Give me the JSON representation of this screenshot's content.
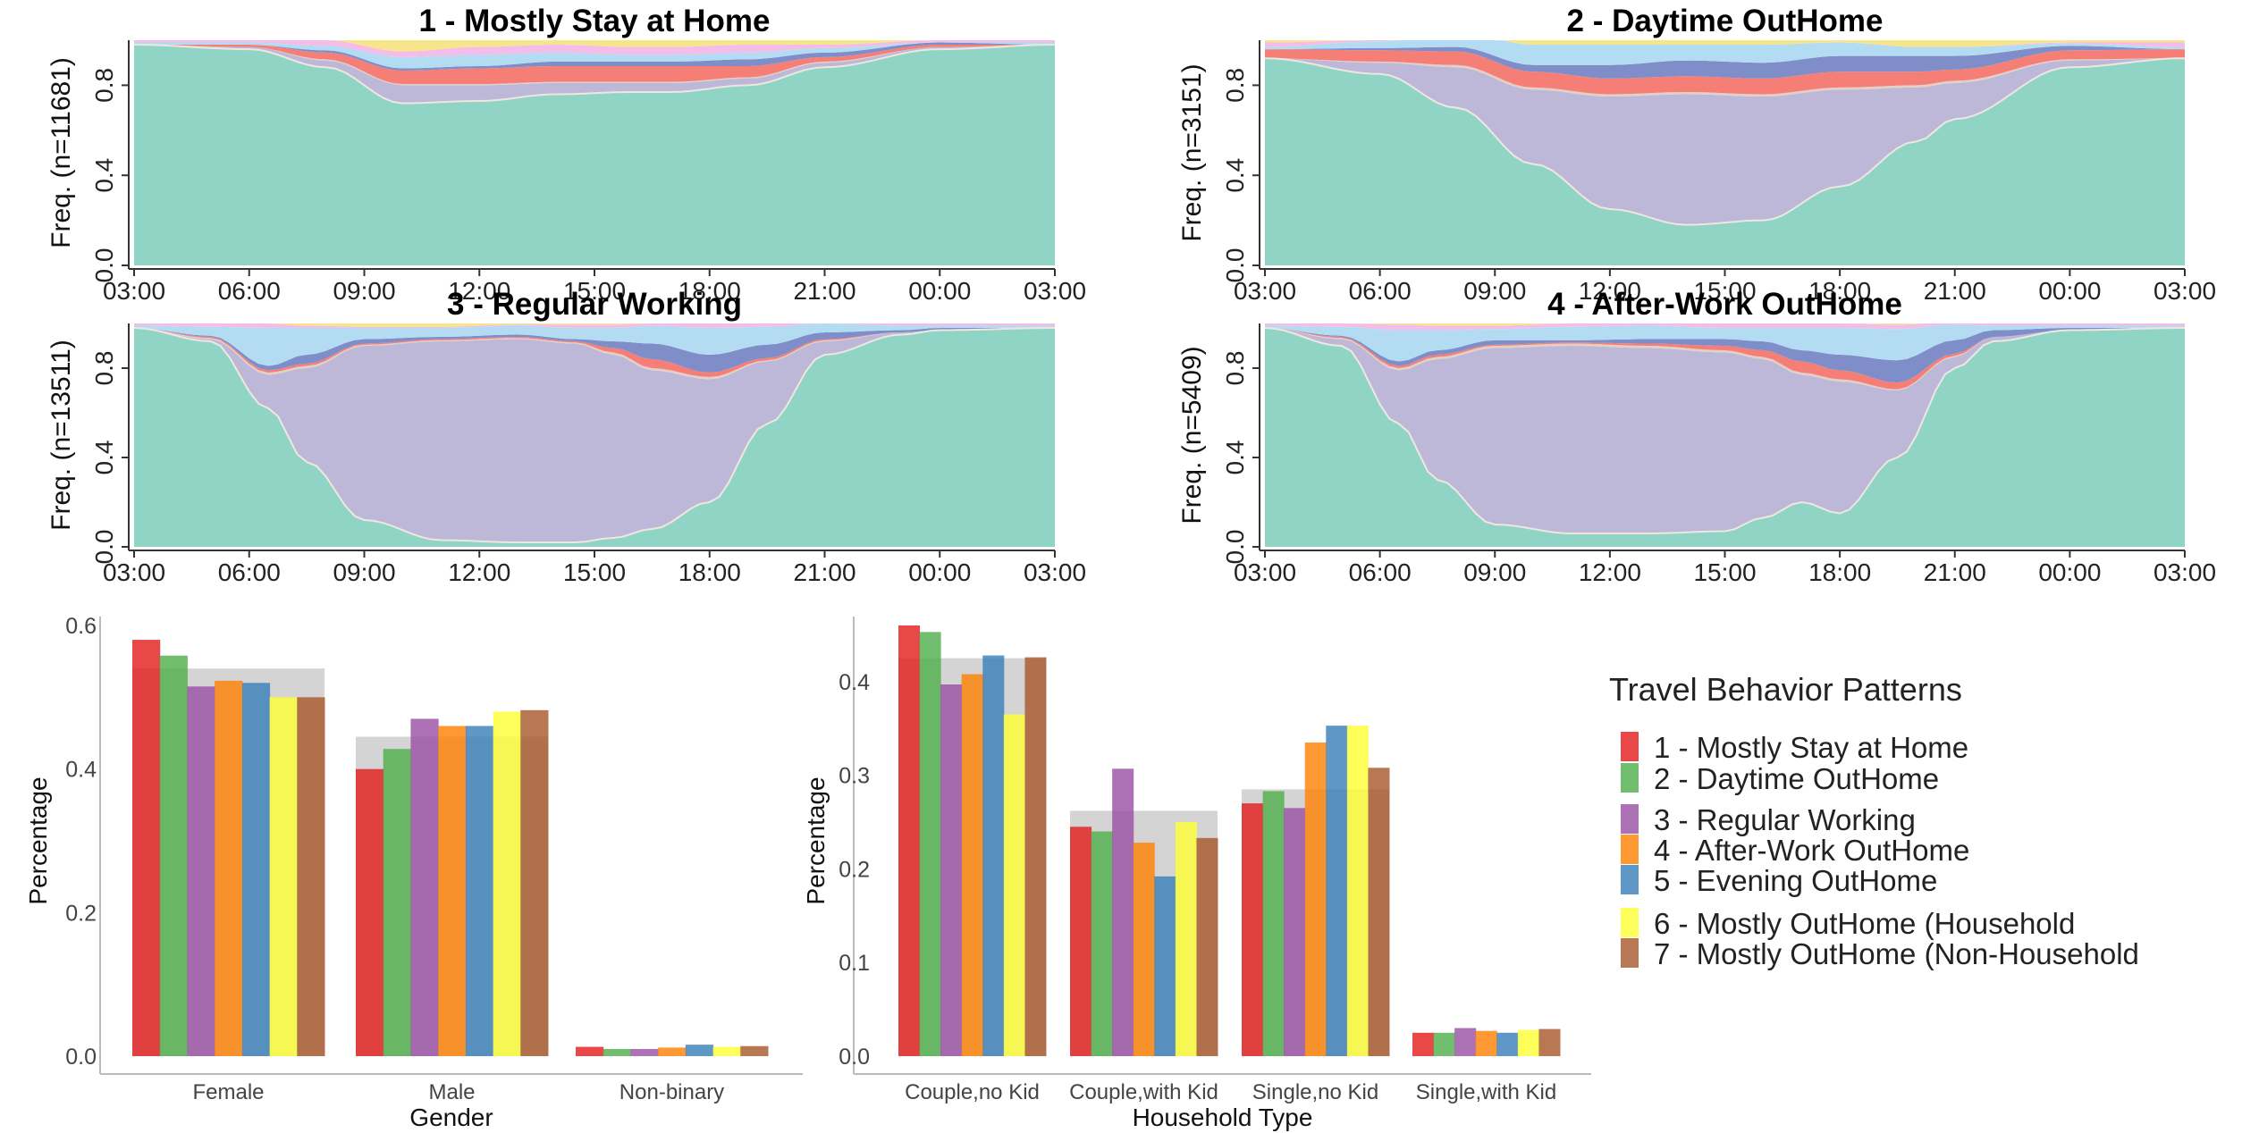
{
  "chart_data": [
    {
      "type": "area",
      "title": "1 - Mostly Stay at Home",
      "ylabel": "Freq. (n=11681)",
      "ylim": [
        0,
        1
      ],
      "yticks": [
        "0.0",
        "0.4",
        "0.8"
      ],
      "xticks": [
        "03:00",
        "06:00",
        "09:00",
        "12:00",
        "15:00",
        "18:00",
        "21:00",
        "00:00",
        "03:00"
      ],
      "hours": [
        0,
        3,
        5,
        7,
        9,
        11,
        13,
        14,
        16,
        18,
        21,
        24
      ],
      "series": [
        {
          "values": [
            0.98,
            0.96,
            0.88,
            0.72,
            0.73,
            0.76,
            0.77,
            0.77,
            0.8,
            0.88,
            0.96,
            0.98
          ]
        },
        {
          "values": [
            0.0,
            0.01,
            0.03,
            0.08,
            0.07,
            0.05,
            0.04,
            0.04,
            0.03,
            0.02,
            0.01,
            0.0
          ]
        },
        {
          "values": [
            0.0,
            0.0,
            0.005,
            0.005,
            0.005,
            0.005,
            0.005,
            0.005,
            0.005,
            0.005,
            0.0,
            0.0
          ]
        },
        {
          "values": [
            0.0,
            0.01,
            0.03,
            0.06,
            0.07,
            0.07,
            0.07,
            0.07,
            0.05,
            0.02,
            0.01,
            0.0
          ]
        },
        {
          "values": [
            0.0,
            0.0,
            0.01,
            0.01,
            0.01,
            0.02,
            0.02,
            0.02,
            0.03,
            0.02,
            0.01,
            0.0
          ]
        },
        {
          "values": [
            0.01,
            0.01,
            0.02,
            0.05,
            0.05,
            0.04,
            0.03,
            0.03,
            0.03,
            0.02,
            0.0,
            0.01
          ]
        },
        {
          "values": [
            0.01,
            0.02,
            0.025,
            0.025,
            0.035,
            0.035,
            0.035,
            0.035,
            0.035,
            0.015,
            0.01,
            0.01
          ]
        }
      ]
    },
    {
      "type": "area",
      "title": "2 - Daytime OutHome",
      "ylabel": "Freq. (n=3151)",
      "ylim": [
        0,
        1
      ],
      "yticks": [
        "0.0",
        "0.4",
        "0.8"
      ],
      "xticks": [
        "03:00",
        "06:00",
        "09:00",
        "12:00",
        "15:00",
        "18:00",
        "21:00",
        "00:00",
        "03:00"
      ],
      "hours": [
        0,
        3,
        5,
        7,
        9,
        11,
        13,
        15,
        17,
        18,
        21,
        24
      ],
      "series": [
        {
          "values": [
            0.92,
            0.85,
            0.7,
            0.45,
            0.25,
            0.18,
            0.2,
            0.35,
            0.55,
            0.65,
            0.88,
            0.92
          ]
        },
        {
          "values": [
            0.0,
            0.05,
            0.18,
            0.33,
            0.5,
            0.58,
            0.55,
            0.43,
            0.24,
            0.16,
            0.03,
            0.0
          ]
        },
        {
          "values": [
            0.0,
            0.005,
            0.01,
            0.01,
            0.01,
            0.01,
            0.01,
            0.01,
            0.01,
            0.01,
            0.005,
            0.0
          ]
        },
        {
          "values": [
            0.04,
            0.05,
            0.06,
            0.07,
            0.07,
            0.07,
            0.07,
            0.07,
            0.06,
            0.05,
            0.04,
            0.04
          ]
        },
        {
          "values": [
            0.0,
            0.01,
            0.02,
            0.03,
            0.06,
            0.07,
            0.07,
            0.07,
            0.07,
            0.06,
            0.02,
            0.0
          ]
        },
        {
          "values": [
            0.01,
            0.03,
            0.07,
            0.09,
            0.09,
            0.07,
            0.08,
            0.06,
            0.04,
            0.04,
            0.01,
            0.01
          ]
        },
        {
          "values": [
            0.02,
            0.005,
            0.0,
            0.0,
            0.0,
            0.0,
            0.0,
            0.0,
            0.0,
            0.0,
            0.005,
            0.02
          ]
        }
      ]
    },
    {
      "type": "area",
      "title": "3 - Regular Working",
      "ylabel": "Freq. (n=13511)",
      "ylim": [
        0,
        1
      ],
      "yticks": [
        "0.0",
        "0.4",
        "0.8"
      ],
      "xticks": [
        "03:00",
        "06:00",
        "09:00",
        "12:00",
        "15:00",
        "18:00",
        "21:00",
        "00:00",
        "03:00"
      ],
      "hours": [
        0,
        2,
        3.5,
        4.5,
        6,
        8,
        10,
        11.5,
        12.5,
        13.5,
        15,
        16.5,
        18,
        20,
        21,
        24
      ],
      "series": [
        {
          "values": [
            0.98,
            0.92,
            0.62,
            0.38,
            0.12,
            0.03,
            0.02,
            0.02,
            0.04,
            0.08,
            0.2,
            0.55,
            0.86,
            0.95,
            0.97,
            0.98
          ]
        },
        {
          "values": [
            0.0,
            0.01,
            0.15,
            0.42,
            0.78,
            0.89,
            0.91,
            0.89,
            0.82,
            0.71,
            0.55,
            0.28,
            0.06,
            0.01,
            0.0,
            0.0
          ]
        },
        {
          "values": [
            0.0,
            0.005,
            0.01,
            0.01,
            0.005,
            0.005,
            0.005,
            0.005,
            0.01,
            0.01,
            0.01,
            0.005,
            0.005,
            0.0,
            0.0,
            0.0
          ]
        },
        {
          "values": [
            0.0,
            0.005,
            0.01,
            0.01,
            0.005,
            0.005,
            0.005,
            0.005,
            0.02,
            0.04,
            0.02,
            0.01,
            0.005,
            0.0,
            0.0,
            0.0
          ]
        },
        {
          "values": [
            0.0,
            0.005,
            0.02,
            0.04,
            0.02,
            0.01,
            0.01,
            0.01,
            0.03,
            0.07,
            0.08,
            0.06,
            0.03,
            0.01,
            0.01,
            0.0
          ]
        },
        {
          "values": [
            0.01,
            0.04,
            0.17,
            0.12,
            0.05,
            0.04,
            0.04,
            0.05,
            0.06,
            0.08,
            0.12,
            0.08,
            0.04,
            0.02,
            0.01,
            0.01
          ]
        },
        {
          "values": [
            0.01,
            0.015,
            0.02,
            0.01,
            0.005,
            0.005,
            0.005,
            0.015,
            0.015,
            0.01,
            0.02,
            0.015,
            0.01,
            0.01,
            0.01,
            0.01
          ]
        }
      ]
    },
    {
      "type": "area",
      "title": "4 - After-Work OutHome",
      "ylabel": "Freq. (n=5409)",
      "ylim": [
        0,
        1
      ],
      "yticks": [
        "0.0",
        "0.4",
        "0.8"
      ],
      "xticks": [
        "03:00",
        "06:00",
        "09:00",
        "12:00",
        "15:00",
        "18:00",
        "21:00",
        "00:00",
        "03:00"
      ],
      "hours": [
        0,
        2,
        3.5,
        4.5,
        6,
        8,
        10,
        12,
        13,
        14,
        15,
        16.5,
        18,
        19,
        21,
        24
      ],
      "series": [
        {
          "values": [
            0.98,
            0.9,
            0.55,
            0.3,
            0.1,
            0.06,
            0.06,
            0.07,
            0.13,
            0.2,
            0.15,
            0.4,
            0.8,
            0.92,
            0.97,
            0.98
          ]
        },
        {
          "values": [
            0.0,
            0.03,
            0.24,
            0.54,
            0.79,
            0.84,
            0.83,
            0.8,
            0.71,
            0.57,
            0.59,
            0.3,
            0.05,
            0.02,
            0.0,
            0.0
          ]
        },
        {
          "values": [
            0.0,
            0.005,
            0.01,
            0.01,
            0.01,
            0.01,
            0.01,
            0.01,
            0.01,
            0.01,
            0.01,
            0.005,
            0.005,
            0.0,
            0.0,
            0.0
          ]
        },
        {
          "values": [
            0.0,
            0.005,
            0.01,
            0.01,
            0.005,
            0.005,
            0.01,
            0.02,
            0.03,
            0.05,
            0.04,
            0.03,
            0.01,
            0.0,
            0.0,
            0.0
          ]
        },
        {
          "values": [
            0.0,
            0.005,
            0.02,
            0.02,
            0.02,
            0.01,
            0.02,
            0.03,
            0.04,
            0.05,
            0.07,
            0.1,
            0.06,
            0.03,
            0.01,
            0.0
          ]
        },
        {
          "values": [
            0.01,
            0.04,
            0.14,
            0.09,
            0.05,
            0.06,
            0.06,
            0.05,
            0.06,
            0.1,
            0.12,
            0.14,
            0.07,
            0.02,
            0.01,
            0.01
          ]
        },
        {
          "values": [
            0.01,
            0.015,
            0.025,
            0.02,
            0.015,
            0.015,
            0.015,
            0.02,
            0.02,
            0.02,
            0.02,
            0.02,
            0.01,
            0.01,
            0.01,
            0.01
          ]
        }
      ]
    },
    {
      "type": "bar",
      "xlabel": "Gender",
      "ylabel": "Percentage",
      "ylim": [
        0,
        0.6
      ],
      "yticks": [
        "0.0",
        "0.2",
        "0.4",
        "0.6"
      ],
      "categories": [
        "Female",
        "Male",
        "Non-binary"
      ],
      "reference": [
        0.54,
        0.445,
        0.0
      ],
      "series": [
        {
          "name": "1 - Mostly Stay at Home",
          "values": [
            0.58,
            0.4,
            0.013
          ]
        },
        {
          "name": "2 - Daytime OutHome",
          "values": [
            0.558,
            0.428,
            0.01
          ]
        },
        {
          "name": "3 - Regular Working",
          "values": [
            0.515,
            0.47,
            0.01
          ]
        },
        {
          "name": "4 - After-Work OutHome",
          "values": [
            0.523,
            0.46,
            0.012
          ]
        },
        {
          "name": "5 - Evening OutHome",
          "values": [
            0.52,
            0.46,
            0.016
          ]
        },
        {
          "name": "6 - Mostly OutHome (Household",
          "values": [
            0.5,
            0.48,
            0.013
          ]
        },
        {
          "name": "7 - Mostly OutHome (Non-Household",
          "values": [
            0.5,
            0.482,
            0.014
          ]
        }
      ]
    },
    {
      "type": "bar",
      "xlabel": "Household Type",
      "ylabel": "Percentage",
      "ylim": [
        0,
        0.46
      ],
      "yticks": [
        "0.0",
        "0.1",
        "0.2",
        "0.3",
        "0.4"
      ],
      "categories": [
        "Couple,no Kid",
        "Couple,with Kid",
        "Single,no Kid",
        "Single,with Kid"
      ],
      "reference": [
        0.425,
        0.262,
        0.285,
        0.0
      ],
      "series": [
        {
          "name": "1 - Mostly Stay at Home",
          "values": [
            0.46,
            0.245,
            0.27,
            0.025
          ]
        },
        {
          "name": "2 - Daytime OutHome",
          "values": [
            0.453,
            0.24,
            0.283,
            0.025
          ]
        },
        {
          "name": "3 - Regular Working",
          "values": [
            0.397,
            0.307,
            0.265,
            0.03
          ]
        },
        {
          "name": "4 - After-Work OutHome",
          "values": [
            0.408,
            0.228,
            0.335,
            0.027
          ]
        },
        {
          "name": "5 - Evening OutHome",
          "values": [
            0.428,
            0.192,
            0.353,
            0.025
          ]
        },
        {
          "name": "6 - Mostly OutHome (Household",
          "values": [
            0.365,
            0.25,
            0.353,
            0.028
          ]
        },
        {
          "name": "7 - Mostly OutHome (Non-Household",
          "values": [
            0.426,
            0.233,
            0.308,
            0.029
          ]
        }
      ]
    }
  ],
  "area_colors": [
    "#8fd4c5",
    "#bdb8d8",
    "#e3cfc6",
    "#f57f77",
    "#7f8ec8",
    "#b3dcf2",
    "#f3bdea",
    "#f8e48a"
  ],
  "bar_colors": [
    "#e31a1c",
    "#4daf4a",
    "#984ea3",
    "#ff7f00",
    "#377eb8",
    "#ffff33",
    "#a65628"
  ],
  "bar_fill_opacity": 0.8,
  "reference_color": "#d4d4d4",
  "legend": {
    "title": "Travel Behavior Patterns",
    "items": [
      "1 - Mostly Stay at Home",
      "2 - Daytime OutHome",
      "3 - Regular Working",
      "4 - After-Work OutHome",
      "5 - Evening OutHome",
      "6 - Mostly OutHome (Household",
      "7 - Mostly OutHome (Non-Household"
    ]
  }
}
